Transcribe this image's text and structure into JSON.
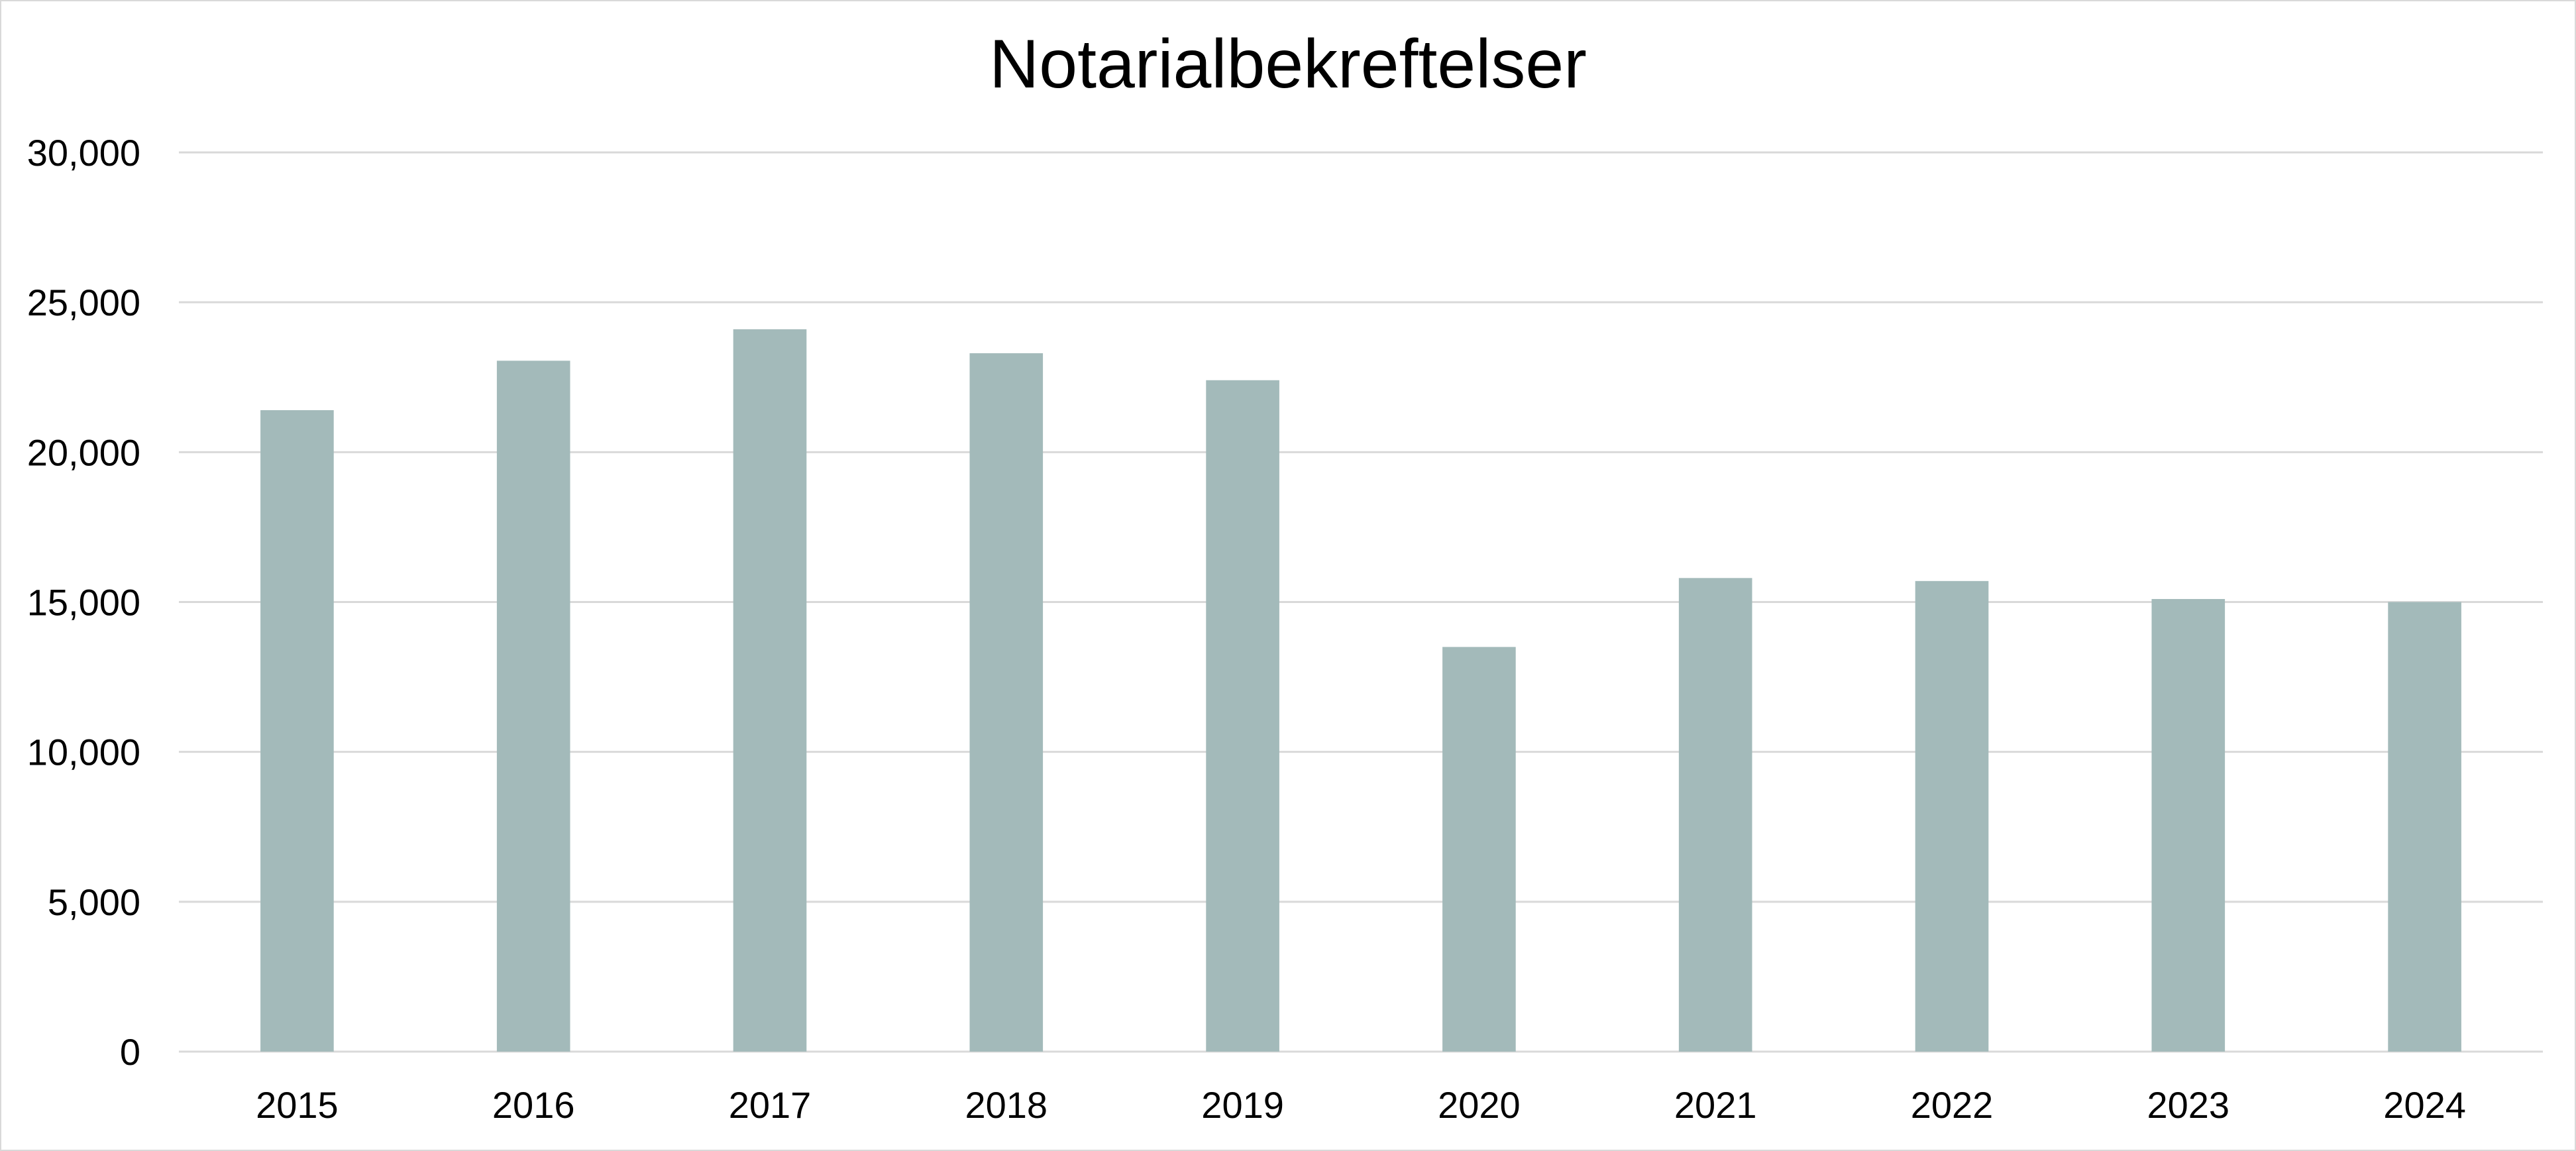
{
  "chart_data": {
    "type": "bar",
    "title": "Notarialbekreftelser",
    "xlabel": "",
    "ylabel": "",
    "categories": [
      "2015",
      "2016",
      "2017",
      "2018",
      "2019",
      "2020",
      "2021",
      "2022",
      "2023",
      "2024"
    ],
    "values": [
      21400,
      23050,
      24100,
      23300,
      22400,
      13500,
      15800,
      15700,
      15100,
      15000
    ],
    "ylim": [
      0,
      30000
    ],
    "yticks": [
      "0",
      "5,000",
      "10,000",
      "15,000",
      "20,000",
      "25,000",
      "30,000"
    ],
    "grid": true,
    "legend": "none",
    "bar_color": "#a3baba",
    "grid_color": "#d9d9d9"
  }
}
